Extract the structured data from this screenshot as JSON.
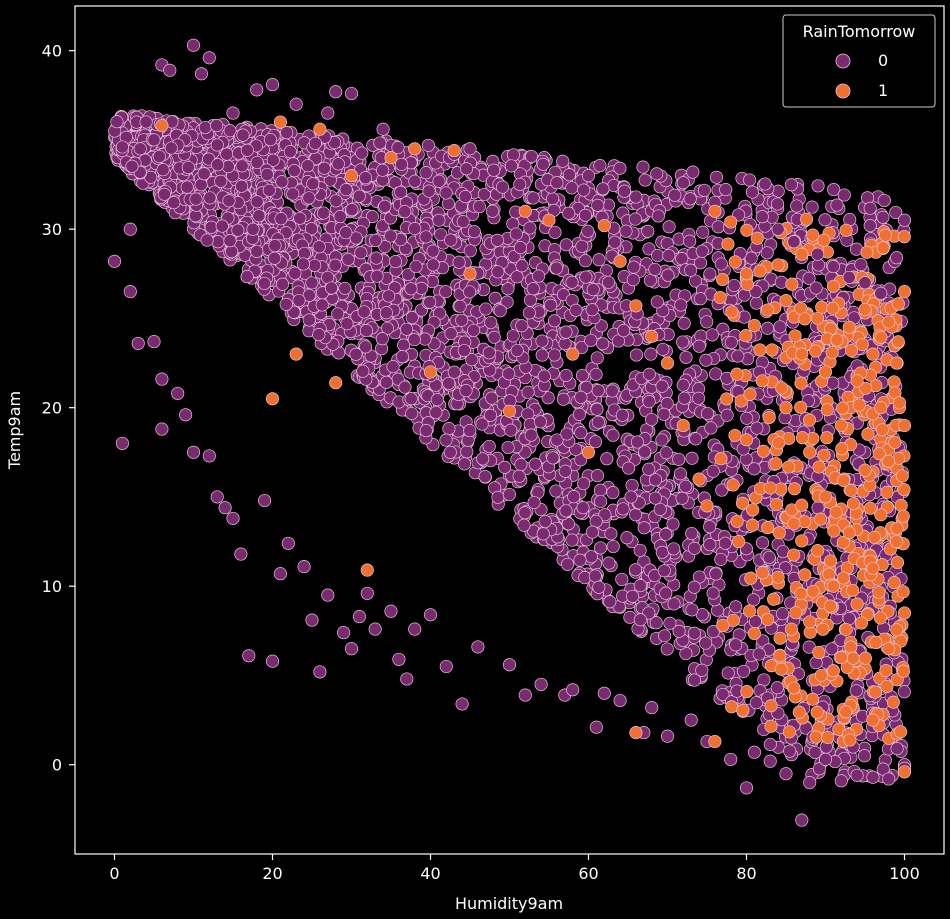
{
  "chart_data": {
    "type": "scatter",
    "title": "",
    "xlabel": "Humidity9am",
    "ylabel": "Temp9am",
    "xlim": [
      -5,
      105
    ],
    "ylim": [
      -5,
      42.5
    ],
    "xticks": [
      0,
      20,
      40,
      60,
      80,
      100
    ],
    "yticks": [
      0,
      10,
      20,
      30,
      40
    ],
    "xtick_labels": [
      "0",
      "20",
      "40",
      "60",
      "80",
      "100"
    ],
    "ytick_labels": [
      "0",
      "10",
      "20",
      "30",
      "40"
    ],
    "grid": false,
    "legend": {
      "title": "RainTomorrow",
      "placement": "top-right",
      "entries": [
        {
          "label": "0",
          "color": "#7a2a6f"
        },
        {
          "label": "1",
          "color": "#f07030"
        }
      ]
    },
    "colors": {
      "background": "#000000",
      "axes": "#ffffff",
      "series_0": "#7a2a6f",
      "series_1": "#f07030",
      "marker_edge": "#e6c2dc"
    },
    "series": [
      {
        "name": "0",
        "points": [
          [
            0,
            28.2
          ],
          [
            1,
            18
          ],
          [
            1,
            34.6
          ],
          [
            2,
            30
          ],
          [
            2,
            26.5
          ],
          [
            3,
            23.6
          ],
          [
            4,
            36
          ],
          [
            5,
            35
          ],
          [
            5,
            23.7
          ],
          [
            6,
            39.2
          ],
          [
            6,
            21.6
          ],
          [
            6,
            18.8
          ],
          [
            7,
            38.9
          ],
          [
            8,
            20.8
          ],
          [
            9,
            19.6
          ],
          [
            10,
            40.3
          ],
          [
            10,
            17.5
          ],
          [
            11,
            38.7
          ],
          [
            12,
            39.6
          ],
          [
            12,
            17.3
          ],
          [
            13,
            15
          ],
          [
            14,
            14.4
          ],
          [
            15,
            36.5
          ],
          [
            15,
            13.8
          ],
          [
            16,
            11.8
          ],
          [
            17,
            6.1
          ],
          [
            18,
            37.8
          ],
          [
            19,
            14.8
          ],
          [
            20,
            5.8
          ],
          [
            20,
            38.1
          ],
          [
            21,
            10.7
          ],
          [
            22,
            12.4
          ],
          [
            23,
            37
          ],
          [
            24,
            11.1
          ],
          [
            25,
            8.1
          ],
          [
            26,
            5.2
          ],
          [
            27,
            9.5
          ],
          [
            27,
            36.5
          ],
          [
            28,
            37.7
          ],
          [
            29,
            7.4
          ],
          [
            30,
            6.5
          ],
          [
            30,
            37.6
          ],
          [
            31,
            8.3
          ],
          [
            32,
            9.6
          ],
          [
            33,
            7.6
          ],
          [
            34,
            35.6
          ],
          [
            35,
            8.6
          ],
          [
            36,
            5.9
          ],
          [
            37,
            4.8
          ],
          [
            38,
            7.6
          ],
          [
            40,
            8.4
          ],
          [
            42,
            5.5
          ],
          [
            43,
            34.2
          ],
          [
            44,
            3.4
          ],
          [
            45,
            34.5
          ],
          [
            46,
            6.6
          ],
          [
            48,
            33.3
          ],
          [
            50,
            5.6
          ],
          [
            52,
            3.9
          ],
          [
            54,
            4.5
          ],
          [
            56,
            32.6
          ],
          [
            57,
            3.9
          ],
          [
            58,
            4.2
          ],
          [
            60,
            33
          ],
          [
            61,
            2.1
          ],
          [
            62,
            4
          ],
          [
            64,
            3.6
          ],
          [
            66,
            31.8
          ],
          [
            67,
            1.8
          ],
          [
            68,
            3.2
          ],
          [
            70,
            1.6
          ],
          [
            72,
            32.6
          ],
          [
            73,
            2.5
          ],
          [
            75,
            1.3
          ],
          [
            76,
            31.5
          ],
          [
            78,
            0.3
          ],
          [
            79,
            30.8
          ],
          [
            80,
            -1.3
          ],
          [
            81,
            0.7
          ],
          [
            82,
            30.7
          ],
          [
            83,
            0.2
          ],
          [
            84,
            30
          ],
          [
            85,
            -0.5
          ],
          [
            86,
            29.3
          ],
          [
            87,
            -3.1
          ],
          [
            88,
            -1
          ],
          [
            89,
            28.6
          ],
          [
            90,
            0.3
          ],
          [
            91,
            27.9
          ],
          [
            92,
            -0.9
          ],
          [
            93,
            27.3
          ],
          [
            94,
            -0.6
          ],
          [
            95,
            27
          ],
          [
            96,
            -0.7
          ],
          [
            97,
            26.4
          ],
          [
            98,
            -0.8
          ],
          [
            99,
            28.4
          ],
          [
            100,
            30.5
          ],
          [
            100,
            0
          ],
          [
            100,
            -0.2
          ]
        ]
      },
      {
        "name": "1",
        "points": [
          [
            6,
            35.8
          ],
          [
            20,
            20.5
          ],
          [
            21,
            36
          ],
          [
            23,
            23
          ],
          [
            26,
            35.6
          ],
          [
            28,
            21.4
          ],
          [
            30,
            33
          ],
          [
            32,
            10.9
          ],
          [
            35,
            34
          ],
          [
            38,
            34.5
          ],
          [
            40,
            22
          ],
          [
            43,
            34.4
          ],
          [
            45,
            27.5
          ],
          [
            50,
            19.8
          ],
          [
            52,
            31
          ],
          [
            55,
            30.5
          ],
          [
            58,
            23
          ],
          [
            60,
            17.5
          ],
          [
            62,
            30.2
          ],
          [
            64,
            28.2
          ],
          [
            66,
            1.8
          ],
          [
            66,
            25.7
          ],
          [
            68,
            24
          ],
          [
            70,
            22.5
          ],
          [
            72,
            19
          ],
          [
            74,
            16
          ],
          [
            75,
            14.5
          ],
          [
            76,
            1.3
          ],
          [
            76,
            31
          ],
          [
            77,
            7.8
          ],
          [
            78,
            30.4
          ],
          [
            79,
            12.5
          ],
          [
            80,
            27.5
          ],
          [
            80,
            18.2
          ],
          [
            81,
            24.6
          ],
          [
            82,
            21.5
          ],
          [
            83,
            15.5
          ],
          [
            84,
            28
          ],
          [
            84,
            10.5
          ],
          [
            85,
            26
          ],
          [
            85,
            20
          ],
          [
            86,
            13.5
          ],
          [
            86,
            4.3
          ],
          [
            87,
            28.6
          ],
          [
            87,
            23
          ],
          [
            88,
            17.5
          ],
          [
            88,
            8
          ],
          [
            89,
            25
          ],
          [
            89,
            12
          ],
          [
            90,
            22
          ],
          [
            90,
            15
          ],
          [
            91,
            26.8
          ],
          [
            91,
            10
          ],
          [
            92,
            19
          ],
          [
            92,
            6
          ],
          [
            93,
            24.5
          ],
          [
            93,
            13
          ],
          [
            94,
            21.5
          ],
          [
            94,
            9
          ],
          [
            95,
            25.5
          ],
          [
            95,
            16.5
          ],
          [
            96,
            23
          ],
          [
            96,
            11
          ],
          [
            96,
            2.5
          ],
          [
            97,
            20
          ],
          [
            97,
            14
          ],
          [
            98,
            24.8
          ],
          [
            98,
            17
          ],
          [
            98,
            6.5
          ],
          [
            99,
            22.5
          ],
          [
            99,
            12.5
          ],
          [
            100,
            26.5
          ],
          [
            100,
            19
          ],
          [
            100,
            8.5
          ],
          [
            100,
            -0.4
          ]
        ]
      }
    ]
  }
}
